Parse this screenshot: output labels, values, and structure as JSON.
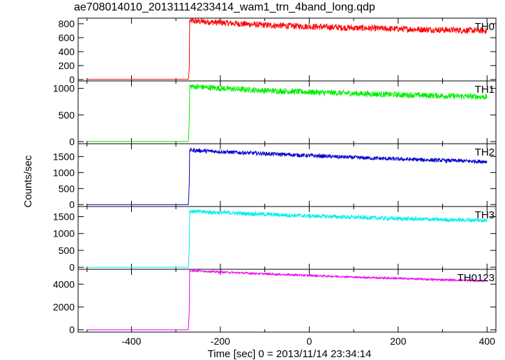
{
  "title": "ae708014010_20131114233414_wam1_trn_4band_long.qdp",
  "xlabel": "Time [sec] 0 = 2013/11/14 23:34:14",
  "ylabel": "Counts/sec",
  "chart_data": {
    "type": "line",
    "title": "ae708014010_20131114233414_wam1_trn_4band_long.qdp",
    "xlabel": "Time [sec] 0 = 2013/11/14 23:34:14",
    "ylabel": "Counts/sec",
    "xlim": [
      -520,
      420
    ],
    "xticks": [
      -400,
      -200,
      0,
      200,
      400
    ],
    "grid": false,
    "panels": [
      {
        "name": "TH0",
        "color": "#ff0000",
        "ylim": [
          -20,
          880
        ],
        "yticks": [
          0,
          200,
          400,
          600,
          800
        ],
        "points": [
          [
            -500,
            3
          ],
          [
            -272,
            3
          ],
          [
            -270,
            160
          ],
          [
            -269,
            840
          ],
          [
            -200,
            815
          ],
          [
            -100,
            780
          ],
          [
            0,
            760
          ],
          [
            100,
            740
          ],
          [
            200,
            725
          ],
          [
            300,
            712
          ],
          [
            400,
            700
          ]
        ],
        "noise": 45
      },
      {
        "name": "TH1",
        "color": "#00ee00",
        "ylim": [
          -40,
          1140
        ],
        "yticks": [
          0,
          500,
          1000
        ],
        "points": [
          [
            -500,
            2
          ],
          [
            -272,
            2
          ],
          [
            -270,
            380
          ],
          [
            -269,
            1040
          ],
          [
            -200,
            1000
          ],
          [
            -100,
            960
          ],
          [
            0,
            930
          ],
          [
            100,
            905
          ],
          [
            200,
            880
          ],
          [
            300,
            860
          ],
          [
            400,
            840
          ]
        ],
        "noise": 55
      },
      {
        "name": "TH2",
        "color": "#0000cc",
        "ylim": [
          -60,
          1900
        ],
        "yticks": [
          0,
          500,
          1000,
          1500
        ],
        "points": [
          [
            -500,
            0
          ],
          [
            -272,
            0
          ],
          [
            -270,
            620
          ],
          [
            -269,
            1700
          ],
          [
            -200,
            1650
          ],
          [
            -100,
            1590
          ],
          [
            0,
            1530
          ],
          [
            100,
            1470
          ],
          [
            200,
            1420
          ],
          [
            300,
            1380
          ],
          [
            400,
            1340
          ]
        ],
        "noise": 60
      },
      {
        "name": "TH3",
        "color": "#00eeee",
        "ylim": [
          -60,
          1800
        ],
        "yticks": [
          0,
          500,
          1000,
          1500
        ],
        "points": [
          [
            -500,
            0
          ],
          [
            -272,
            0
          ],
          [
            -270,
            580
          ],
          [
            -269,
            1660
          ],
          [
            -200,
            1620
          ],
          [
            -100,
            1570
          ],
          [
            0,
            1520
          ],
          [
            100,
            1480
          ],
          [
            200,
            1440
          ],
          [
            300,
            1410
          ],
          [
            400,
            1390
          ]
        ],
        "noise": 60
      },
      {
        "name": "TH0123",
        "color": "#ee00ee",
        "ylim": [
          -200,
          5300
        ],
        "yticks": [
          0,
          2000,
          4000
        ],
        "points": [
          [
            -500,
            0
          ],
          [
            -272,
            0
          ],
          [
            -270,
            1700
          ],
          [
            -269,
            5200
          ],
          [
            -200,
            5060
          ],
          [
            -100,
            4900
          ],
          [
            0,
            4760
          ],
          [
            100,
            4620
          ],
          [
            200,
            4500
          ],
          [
            300,
            4380
          ],
          [
            400,
            4280
          ]
        ],
        "noise": 80
      }
    ]
  }
}
